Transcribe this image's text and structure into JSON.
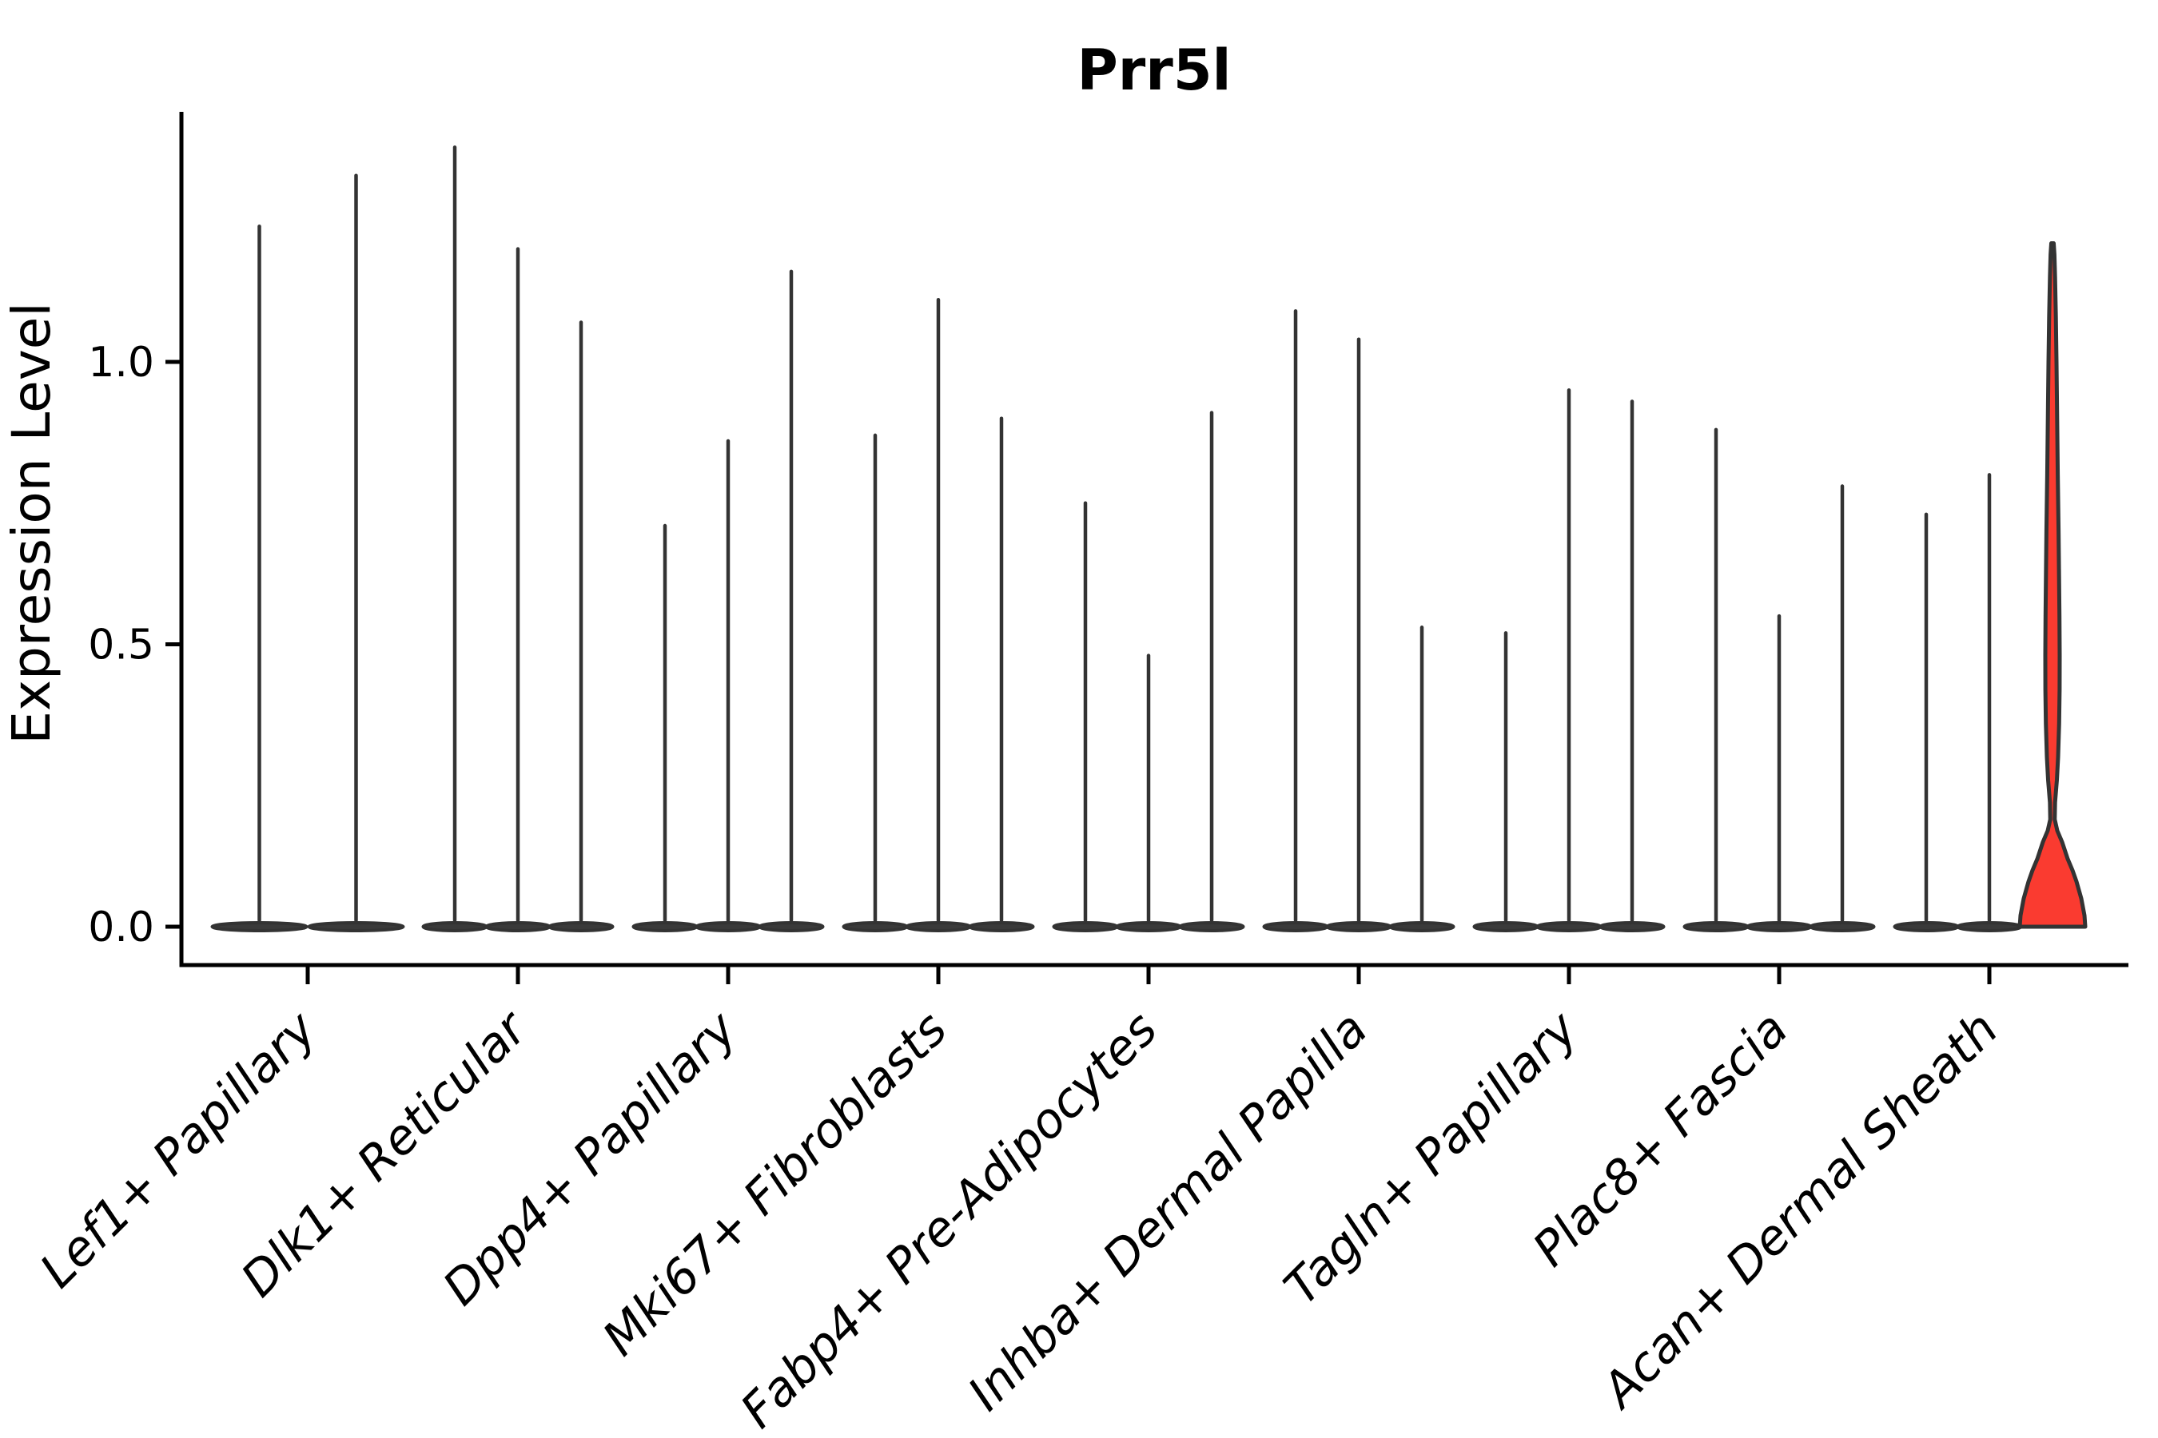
{
  "title": "Prr5l",
  "chart_data": {
    "type": "violin",
    "title": "Prr5l",
    "xlabel": "",
    "ylabel": "Expression Level",
    "ylim": [
      0,
      1.44
    ],
    "yticks": [
      {
        "label": "0.0",
        "value": 0.0
      },
      {
        "label": "0.5",
        "value": 0.5
      },
      {
        "label": "1.0",
        "value": 1.0
      }
    ],
    "grid": false,
    "legend": "none",
    "description": "Single-gene expression violin plot (scanpy/Seurat style). Each cell-type group contains 2-3 very thin dark violins collapsed at 0 with a hairline spike up to the max expression value; the last violin of the last group is highlighted in red with a visible zero-inflated bell shape.",
    "categories": [
      "Lef1+ Papillary",
      "Dlk1+ Reticular",
      "Dpp4+ Papillary",
      "Mki67+ Fibroblasts",
      "Fabp4+ Pre-Adipocytes",
      "Inhba+ Dermal Papilla",
      "Tagln+ Papillary",
      "Plac8+ Fascia",
      "Acan+ Dermal Sheath"
    ],
    "groups": [
      {
        "category": "Lef1+ Papillary",
        "violins": [
          {
            "max": 1.24
          },
          {
            "max": 1.33
          }
        ]
      },
      {
        "category": "Dlk1+ Reticular",
        "violins": [
          {
            "max": 1.38
          },
          {
            "max": 1.2
          },
          {
            "max": 1.07
          }
        ]
      },
      {
        "category": "Dpp4+ Papillary",
        "violins": [
          {
            "max": 0.71
          },
          {
            "max": 0.86
          },
          {
            "max": 1.16
          }
        ]
      },
      {
        "category": "Mki67+ Fibroblasts",
        "violins": [
          {
            "max": 0.87
          },
          {
            "max": 1.11
          },
          {
            "max": 0.9
          }
        ]
      },
      {
        "category": "Fabp4+ Pre-Adipocytes",
        "violins": [
          {
            "max": 0.75
          },
          {
            "max": 0.48
          },
          {
            "max": 0.91
          }
        ]
      },
      {
        "category": "Inhba+ Dermal Papilla",
        "violins": [
          {
            "max": 1.09
          },
          {
            "max": 1.04
          },
          {
            "max": 0.53
          }
        ]
      },
      {
        "category": "Tagln+ Papillary",
        "violins": [
          {
            "max": 0.52
          },
          {
            "max": 0.95
          },
          {
            "max": 0.93
          }
        ]
      },
      {
        "category": "Plac8+ Fascia",
        "violins": [
          {
            "max": 0.88
          },
          {
            "max": 0.55
          },
          {
            "max": 0.78
          }
        ]
      },
      {
        "category": "Acan+ Dermal Sheath",
        "violins": [
          {
            "max": 0.73
          },
          {
            "max": 0.8
          },
          {
            "max": 1.21,
            "highlight": true
          }
        ]
      }
    ],
    "highlight_violin": {
      "category": "Acan+ Dermal Sheath",
      "position": 3,
      "max": 1.21,
      "fill": "#fa3b30",
      "profile_value_halfwidth": [
        [
          0.0,
          41
        ],
        [
          0.02,
          40
        ],
        [
          0.05,
          36
        ],
        [
          0.08,
          30
        ],
        [
          0.1,
          25
        ],
        [
          0.12,
          19
        ],
        [
          0.15,
          12
        ],
        [
          0.17,
          6
        ],
        [
          0.19,
          2.8
        ],
        [
          0.22,
          3.2
        ],
        [
          0.26,
          5.5
        ],
        [
          0.3,
          7
        ],
        [
          0.36,
          8.3
        ],
        [
          0.42,
          8.9
        ],
        [
          0.48,
          9.0
        ],
        [
          0.55,
          8.7
        ],
        [
          0.62,
          8.2
        ],
        [
          0.7,
          7.6
        ],
        [
          0.8,
          6.6
        ],
        [
          0.9,
          5.8
        ],
        [
          1.0,
          5.0
        ],
        [
          1.08,
          4.2
        ],
        [
          1.15,
          3.2
        ],
        [
          1.19,
          2.4
        ],
        [
          1.21,
          1.5
        ]
      ]
    },
    "colors": {
      "violin_fill": "#3a3a3a",
      "violin_edge": "#333333",
      "highlight_fill": "#fa3b30",
      "axis": "#000000"
    }
  }
}
